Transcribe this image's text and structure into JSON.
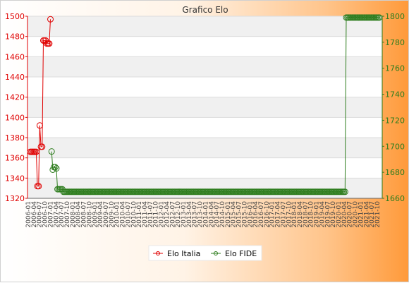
{
  "chart_data": {
    "type": "line",
    "title": "Grafico Elo",
    "y_left": {
      "ylim": [
        1320,
        1500
      ],
      "ticks": [
        1320,
        1340,
        1360,
        1380,
        1400,
        1420,
        1440,
        1460,
        1480,
        1500
      ],
      "color": "#e00000"
    },
    "y_right": {
      "ylim": [
        1660,
        1800
      ],
      "ticks": [
        1660,
        1680,
        1700,
        1720,
        1740,
        1760,
        1780,
        1800
      ],
      "color": "#2e7d1e"
    },
    "grid": true,
    "legend_position": "bottom-center",
    "x_tick_labels": [
      "2006-01",
      "2006-04",
      "2006-07",
      "2006-10",
      "2007-01",
      "2007-04",
      "2007-07",
      "2007-10",
      "2008-01",
      "2008-04",
      "2008-07",
      "2008-10",
      "2009-01",
      "2009-04",
      "2009-07",
      "2009-10",
      "2010-01",
      "2010-04",
      "2010-07",
      "2010-10",
      "2011-01",
      "2011-04",
      "2011-07",
      "2011-10",
      "2012-01",
      "2012-04",
      "2012-07",
      "2012-10",
      "2013-01",
      "2013-04",
      "2013-07",
      "2013-10",
      "2014-01",
      "2014-04",
      "2014-07",
      "2014-10",
      "2015-01",
      "2015-04",
      "2015-07",
      "2015-10",
      "2016-01",
      "2016-04",
      "2016-07",
      "2016-10",
      "2017-01",
      "2017-04",
      "2017-07",
      "2017-10",
      "2018-01",
      "2018-04",
      "2018-07",
      "2018-10",
      "2019-01",
      "2019-04",
      "2019-07",
      "2019-10",
      "2020-01",
      "2020-04",
      "2020-07",
      "2020-10",
      "2021-01",
      "2021-04",
      "2021-07",
      "2021-10"
    ],
    "series": [
      {
        "name": "Elo Italia",
        "axis": "left",
        "color": "#e00000",
        "points": [
          [
            0,
            1366
          ],
          [
            1,
            1366
          ],
          [
            2,
            1366
          ],
          [
            3,
            1366
          ],
          [
            4,
            1366
          ],
          [
            5,
            1366
          ],
          [
            6,
            1332
          ],
          [
            7,
            1332
          ],
          [
            8,
            1392
          ],
          [
            9,
            1371
          ],
          [
            10,
            1371
          ],
          [
            11,
            1476
          ],
          [
            12,
            1476
          ],
          [
            13,
            1476
          ],
          [
            14,
            1473
          ],
          [
            15,
            1473
          ],
          [
            16,
            1473
          ],
          [
            17,
            1497
          ]
        ]
      },
      {
        "name": "Elo FIDE",
        "axis": "right",
        "color": "#2e7d1e",
        "points": [
          [
            18,
            1696
          ],
          [
            19,
            1682
          ],
          [
            20,
            1684
          ],
          [
            21,
            1684
          ],
          [
            22,
            1683
          ],
          [
            23,
            1667
          ],
          [
            24,
            1667
          ],
          [
            25,
            1667
          ],
          [
            26,
            1667
          ],
          [
            27,
            1667
          ],
          [
            28,
            1665
          ],
          [
            29,
            1665
          ],
          [
            30,
            1665
          ],
          [
            31,
            1665
          ],
          [
            32,
            1665
          ],
          [
            33,
            1665
          ],
          [
            34,
            1665
          ],
          [
            35,
            1665
          ],
          [
            36,
            1665
          ],
          [
            37,
            1665
          ],
          [
            38,
            1665
          ],
          [
            39,
            1665
          ],
          [
            40,
            1665
          ],
          [
            41,
            1665
          ],
          [
            42,
            1665
          ],
          [
            43,
            1665
          ],
          [
            44,
            1665
          ],
          [
            45,
            1665
          ],
          [
            46,
            1665
          ],
          [
            47,
            1665
          ],
          [
            48,
            1665
          ],
          [
            49,
            1665
          ],
          [
            50,
            1665
          ],
          [
            51,
            1665
          ],
          [
            52,
            1665
          ],
          [
            53,
            1665
          ],
          [
            54,
            1665
          ],
          [
            55,
            1665
          ],
          [
            56,
            1665
          ],
          [
            57,
            1665
          ],
          [
            58,
            1665
          ],
          [
            59,
            1665
          ],
          [
            60,
            1665
          ],
          [
            61,
            1665
          ],
          [
            62,
            1665
          ],
          [
            63,
            1665
          ],
          [
            64,
            1665
          ],
          [
            65,
            1665
          ],
          [
            66,
            1665
          ],
          [
            67,
            1665
          ],
          [
            68,
            1665
          ],
          [
            69,
            1665
          ],
          [
            70,
            1665
          ],
          [
            71,
            1665
          ],
          [
            72,
            1665
          ],
          [
            73,
            1665
          ],
          [
            74,
            1665
          ],
          [
            75,
            1665
          ],
          [
            76,
            1665
          ],
          [
            77,
            1665
          ],
          [
            78,
            1665
          ],
          [
            79,
            1665
          ],
          [
            80,
            1665
          ],
          [
            81,
            1665
          ],
          [
            82,
            1665
          ],
          [
            83,
            1665
          ],
          [
            84,
            1665
          ],
          [
            85,
            1665
          ],
          [
            86,
            1665
          ],
          [
            87,
            1665
          ],
          [
            88,
            1665
          ],
          [
            89,
            1665
          ],
          [
            90,
            1665
          ],
          [
            91,
            1665
          ],
          [
            92,
            1665
          ],
          [
            93,
            1665
          ],
          [
            94,
            1665
          ],
          [
            95,
            1665
          ],
          [
            96,
            1665
          ],
          [
            97,
            1665
          ],
          [
            98,
            1665
          ],
          [
            99,
            1665
          ],
          [
            100,
            1665
          ],
          [
            101,
            1665
          ],
          [
            102,
            1665
          ],
          [
            103,
            1665
          ],
          [
            104,
            1665
          ],
          [
            105,
            1665
          ],
          [
            106,
            1665
          ],
          [
            107,
            1665
          ],
          [
            108,
            1665
          ],
          [
            109,
            1665
          ],
          [
            110,
            1665
          ],
          [
            111,
            1665
          ],
          [
            112,
            1665
          ],
          [
            113,
            1665
          ],
          [
            114,
            1665
          ],
          [
            115,
            1665
          ],
          [
            116,
            1665
          ],
          [
            117,
            1665
          ],
          [
            118,
            1665
          ],
          [
            119,
            1665
          ],
          [
            120,
            1665
          ],
          [
            121,
            1665
          ],
          [
            122,
            1665
          ],
          [
            123,
            1665
          ],
          [
            124,
            1665
          ],
          [
            125,
            1665
          ],
          [
            126,
            1665
          ],
          [
            127,
            1665
          ],
          [
            128,
            1665
          ],
          [
            129,
            1665
          ],
          [
            130,
            1665
          ],
          [
            131,
            1665
          ],
          [
            132,
            1665
          ],
          [
            133,
            1665
          ],
          [
            134,
            1665
          ],
          [
            135,
            1665
          ],
          [
            136,
            1665
          ],
          [
            137,
            1665
          ],
          [
            138,
            1665
          ],
          [
            139,
            1665
          ],
          [
            140,
            1665
          ],
          [
            141,
            1665
          ],
          [
            142,
            1665
          ],
          [
            143,
            1665
          ],
          [
            144,
            1665
          ],
          [
            145,
            1665
          ],
          [
            146,
            1665
          ],
          [
            147,
            1665
          ],
          [
            148,
            1665
          ],
          [
            149,
            1665
          ],
          [
            150,
            1665
          ],
          [
            151,
            1665
          ],
          [
            152,
            1665
          ],
          [
            153,
            1665
          ],
          [
            154,
            1665
          ],
          [
            155,
            1665
          ],
          [
            156,
            1665
          ],
          [
            157,
            1665
          ],
          [
            158,
            1665
          ],
          [
            159,
            1665
          ],
          [
            160,
            1665
          ],
          [
            161,
            1665
          ],
          [
            162,
            1665
          ],
          [
            163,
            1665
          ],
          [
            164,
            1665
          ],
          [
            165,
            1665
          ],
          [
            166,
            1665
          ],
          [
            167,
            1665
          ],
          [
            168,
            1665
          ],
          [
            169,
            1665
          ],
          [
            170,
            1665
          ],
          [
            171,
            1665
          ],
          [
            172,
            1665
          ],
          [
            173,
            1665
          ],
          [
            174,
            1665
          ],
          [
            175,
            1665
          ],
          [
            176,
            1665
          ],
          [
            177,
            1665
          ],
          [
            178,
            1665
          ],
          [
            179,
            1665
          ],
          [
            180,
            1665
          ],
          [
            181,
            1665
          ],
          [
            182,
            1665
          ],
          [
            183,
            1665
          ],
          [
            184,
            1665
          ],
          [
            185,
            1665
          ],
          [
            186,
            1665
          ],
          [
            187,
            1665
          ],
          [
            188,
            1665
          ],
          [
            189,
            1665
          ],
          [
            190,
            1665
          ],
          [
            191,
            1665
          ],
          [
            192,
            1665
          ],
          [
            193,
            1665
          ],
          [
            194,
            1665
          ],
          [
            195,
            1665
          ],
          [
            196,
            1665
          ],
          [
            197,
            1665
          ],
          [
            198,
            1665
          ],
          [
            199,
            1665
          ],
          [
            200,
            1665
          ],
          [
            201,
            1665
          ],
          [
            202,
            1665
          ],
          [
            203,
            1665
          ],
          [
            204,
            1665
          ],
          [
            205,
            1665
          ],
          [
            206,
            1665
          ],
          [
            207,
            1665
          ],
          [
            208,
            1665
          ],
          [
            209,
            1665
          ],
          [
            210,
            1665
          ],
          [
            211,
            1665
          ],
          [
            212,
            1665
          ],
          [
            213,
            1665
          ],
          [
            214,
            1665
          ],
          [
            215,
            1665
          ],
          [
            216,
            1665
          ],
          [
            217,
            1665
          ],
          [
            218,
            1665
          ],
          [
            219,
            1665
          ],
          [
            220,
            1665
          ],
          [
            221,
            1665
          ],
          [
            222,
            1665
          ],
          [
            223,
            1665
          ],
          [
            224,
            1665
          ],
          [
            225,
            1665
          ],
          [
            226,
            1665
          ],
          [
            227,
            1665
          ],
          [
            228,
            1665
          ],
          [
            229,
            1665
          ],
          [
            230,
            1665
          ],
          [
            231,
            1665
          ],
          [
            232,
            1665
          ],
          [
            233,
            1665
          ],
          [
            234,
            1665
          ],
          [
            235,
            1665
          ],
          [
            236,
            1665
          ],
          [
            237,
            1665
          ],
          [
            238,
            1665
          ],
          [
            239,
            1665
          ],
          [
            240,
            1665
          ],
          [
            241,
            1665
          ],
          [
            242,
            1665
          ],
          [
            243,
            1665
          ],
          [
            244,
            1665
          ],
          [
            245,
            1665
          ],
          [
            246,
            1665
          ],
          [
            247,
            1665
          ],
          [
            248,
            1665
          ],
          [
            249,
            1665
          ],
          [
            250,
            1665
          ],
          [
            251,
            1665
          ],
          [
            252,
            1665
          ],
          [
            253,
            1665
          ],
          [
            254,
            1665
          ],
          [
            255,
            1665
          ],
          [
            256,
            1665
          ],
          [
            257,
            1665
          ],
          [
            258,
            1665
          ],
          [
            259,
            1665
          ],
          [
            260,
            1665
          ],
          [
            261,
            1665
          ],
          [
            262,
            1665
          ],
          [
            263,
            1665
          ],
          [
            264,
            1665
          ],
          [
            265,
            1665
          ],
          [
            266,
            1665
          ],
          [
            267,
            1799
          ],
          [
            268,
            1799
          ],
          [
            269,
            1799
          ],
          [
            270,
            1799
          ],
          [
            271,
            1799
          ],
          [
            272,
            1799
          ],
          [
            273,
            1799
          ],
          [
            274,
            1799
          ],
          [
            275,
            1799
          ],
          [
            276,
            1799
          ],
          [
            277,
            1799
          ],
          [
            278,
            1799
          ],
          [
            279,
            1799
          ],
          [
            280,
            1799
          ],
          [
            281,
            1799
          ],
          [
            282,
            1799
          ],
          [
            283,
            1799
          ],
          [
            284,
            1799
          ],
          [
            285,
            1799
          ],
          [
            286,
            1799
          ],
          [
            287,
            1799
          ],
          [
            288,
            1799
          ],
          [
            289,
            1799
          ],
          [
            290,
            1799
          ],
          [
            291,
            1799
          ],
          [
            292,
            1799
          ],
          [
            293,
            1799
          ],
          [
            294,
            1799
          ],
          [
            295,
            1799
          ]
        ]
      }
    ],
    "x_index_range": [
      0,
      295
    ]
  }
}
